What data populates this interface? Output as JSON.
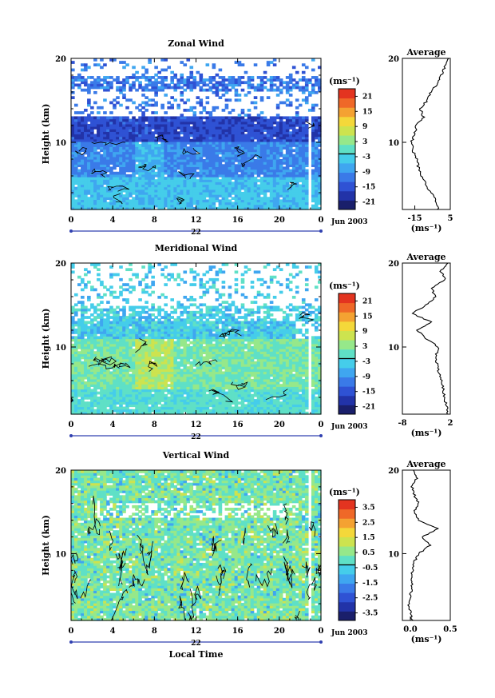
{
  "chart_data": [
    {
      "type": "heatmap",
      "title": "Zonal Wind",
      "ylabel": "Height (km)",
      "xlabel": "",
      "xticks": [
        "0",
        "4",
        "8",
        "12",
        "16",
        "20",
        "0"
      ],
      "yticks": [
        "20",
        "10"
      ],
      "xlim": [
        0,
        24
      ],
      "ylim": [
        2,
        20
      ],
      "date_day": "22",
      "date_label": "Jun 2003",
      "colorbar": {
        "unit": "(ms⁻¹)",
        "ticks": [
          "21",
          "15",
          "9",
          "3",
          "-3",
          "-9",
          "-15",
          "-21"
        ],
        "range": [
          -24,
          24
        ]
      },
      "average": {
        "title": "Average",
        "xticks": [
          "-15",
          "5"
        ],
        "yticks": [
          "20",
          "10"
        ],
        "xunit": "(ms⁻¹)",
        "xlim": [
          -22,
          5
        ],
        "profile": [
          [
            -2,
            2.0
          ],
          [
            -3,
            3
          ],
          [
            -6,
            4
          ],
          [
            -9,
            5
          ],
          [
            -11,
            6
          ],
          [
            -13,
            7
          ],
          [
            -14,
            8
          ],
          [
            -16,
            9
          ],
          [
            -17,
            10
          ],
          [
            -15,
            11
          ],
          [
            -14,
            12
          ],
          [
            -10,
            13
          ],
          [
            -12,
            14
          ],
          [
            -8,
            15
          ],
          [
            -6,
            16
          ],
          [
            -2,
            17
          ],
          [
            0,
            18
          ],
          [
            2,
            19
          ],
          [
            4,
            20
          ]
        ]
      }
    },
    {
      "type": "heatmap",
      "title": "Meridional Wind",
      "ylabel": "Height (km)",
      "xlabel": "",
      "xticks": [
        "0",
        "4",
        "8",
        "12",
        "16",
        "20",
        "0"
      ],
      "yticks": [
        "20",
        "10"
      ],
      "xlim": [
        0,
        24
      ],
      "ylim": [
        2,
        20
      ],
      "date_day": "22",
      "date_label": "Jun 2003",
      "colorbar": {
        "unit": "(ms⁻¹)",
        "ticks": [
          "21",
          "15",
          "9",
          "3",
          "-3",
          "-9",
          "-15",
          "-21"
        ],
        "range": [
          -24,
          24
        ]
      },
      "average": {
        "title": "Average",
        "xticks": [
          "-8",
          "2"
        ],
        "yticks": [
          "20",
          "10"
        ],
        "xunit": "(ms⁻¹)",
        "xlim": [
          -8,
          2
        ],
        "profile": [
          [
            1.5,
            2.0
          ],
          [
            1.2,
            3
          ],
          [
            0.8,
            4
          ],
          [
            0.5,
            5
          ],
          [
            0.2,
            6
          ],
          [
            -0.5,
            7
          ],
          [
            -0.8,
            8
          ],
          [
            -1,
            9
          ],
          [
            -0.5,
            10
          ],
          [
            -3,
            11
          ],
          [
            -5,
            12
          ],
          [
            -2,
            13
          ],
          [
            -6,
            14
          ],
          [
            -3,
            15
          ],
          [
            -1,
            16
          ],
          [
            -2,
            17
          ],
          [
            1,
            18
          ],
          [
            0,
            19
          ],
          [
            1.5,
            20
          ]
        ]
      }
    },
    {
      "type": "heatmap",
      "title": "Vertical Wind",
      "ylabel": "Height (km)",
      "xlabel": "Local Time",
      "xticks": [
        "0",
        "4",
        "8",
        "12",
        "16",
        "20",
        "0"
      ],
      "yticks": [
        "20",
        "10"
      ],
      "xlim": [
        0,
        24
      ],
      "ylim": [
        2,
        20
      ],
      "date_day": "22",
      "date_label": "Jun 2003",
      "colorbar": {
        "unit": "(ms⁻¹)",
        "ticks": [
          "3.5",
          "2.5",
          "1.5",
          "0.5",
          "-0.5",
          "-1.5",
          "-2.5",
          "-3.5"
        ],
        "range": [
          -4,
          4
        ]
      },
      "average": {
        "title": "Average",
        "xticks": [
          "0.0",
          "0.5"
        ],
        "yticks": [
          "20",
          "10"
        ],
        "xunit": "(ms⁻¹)",
        "xlim": [
          -0.1,
          0.5
        ],
        "profile": [
          [
            0.02,
            2.0
          ],
          [
            0.0,
            3
          ],
          [
            -0.02,
            4
          ],
          [
            0.0,
            5
          ],
          [
            0.02,
            6
          ],
          [
            0.01,
            7
          ],
          [
            0.03,
            8
          ],
          [
            0.05,
            9
          ],
          [
            0.1,
            10
          ],
          [
            0.25,
            11
          ],
          [
            0.15,
            12
          ],
          [
            0.35,
            13
          ],
          [
            0.1,
            14
          ],
          [
            0.05,
            15
          ],
          [
            0.1,
            16
          ],
          [
            0.05,
            17
          ],
          [
            0.02,
            18
          ],
          [
            0.08,
            19
          ],
          [
            0.04,
            20
          ]
        ]
      }
    }
  ],
  "colors": {
    "scale": [
      "#1a1f6b",
      "#2233a8",
      "#2f52d4",
      "#3a7ae8",
      "#3fa6f0",
      "#45cdea",
      "#5fe0c6",
      "#96e88a",
      "#cde34f",
      "#f4d83a",
      "#f4a232",
      "#ef6828",
      "#e33420"
    ],
    "white_gap": "#ffffff",
    "line": "#000000"
  }
}
